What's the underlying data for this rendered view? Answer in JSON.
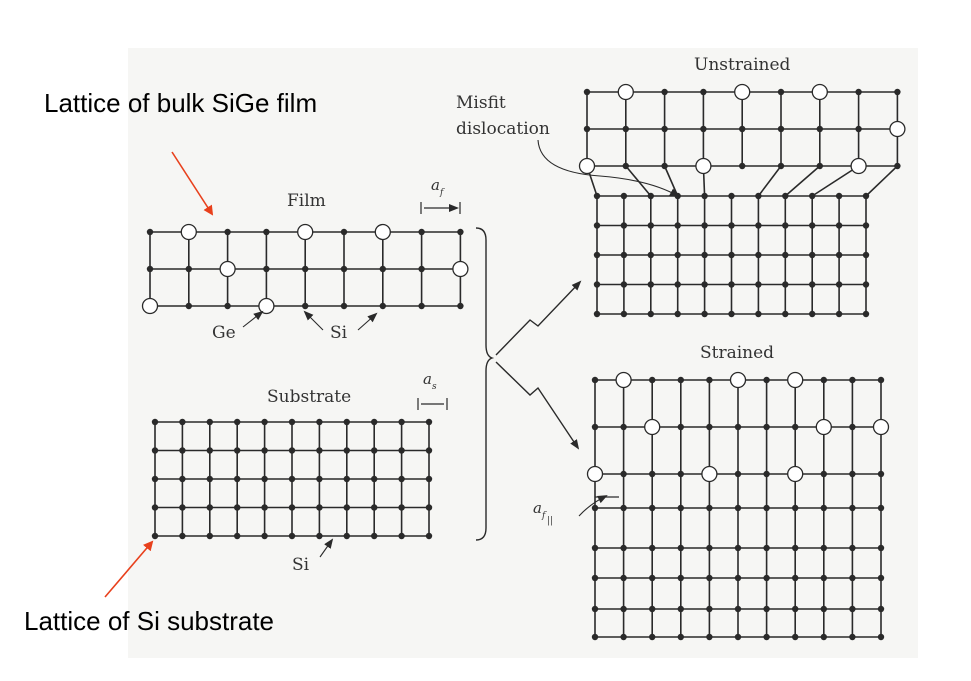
{
  "captions": {
    "bulk_film": "Lattice of bulk SiGe film",
    "substrate": "Lattice of Si substrate"
  },
  "labels": {
    "film": "Film",
    "substrate": "Substrate",
    "ge": "Ge",
    "si_film": "Si",
    "si_substrate": "Si",
    "unstrained": "Unstrained",
    "strained": "Strained",
    "misfit_line1": "Misfit",
    "misfit_line2": "dislocation",
    "a_f_base": "a",
    "a_f_sub": "f",
    "a_s_base": "a",
    "a_s_sub": "s",
    "a_f_par_base": "a",
    "a_f_par_sub": "f",
    "a_f_par_subsub": "||"
  },
  "colors": {
    "pointer_arrow": "#e8401c",
    "lattice": "#2a2a2a",
    "paper": "#f6f6f4"
  }
}
